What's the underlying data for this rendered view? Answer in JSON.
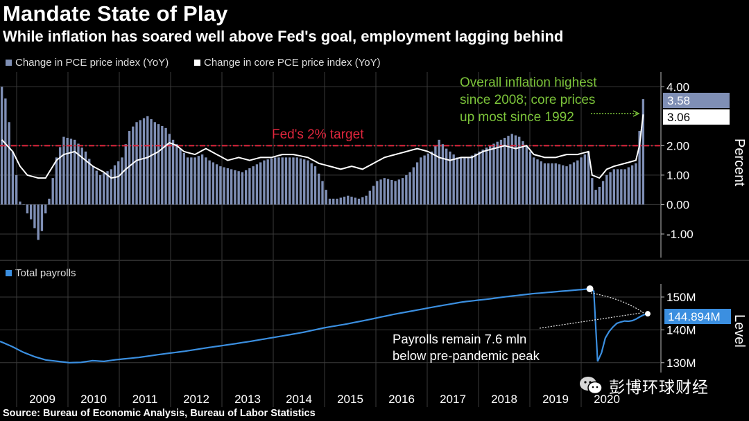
{
  "header": {
    "title": "Mandate State of Play",
    "subtitle": "While inflation has soared well above Fed's goal, employment lagging behind"
  },
  "colors": {
    "pce": "#7f8fb5",
    "core": "#ffffff",
    "target": "#e0263d",
    "annotation": "#7cc43a",
    "payrolls": "#3b8fe0",
    "grid": "#3a3a3a"
  },
  "chart_data": [
    {
      "type": "bar+line",
      "legend": {
        "pce": "Change in PCE price index (YoY)",
        "core": "Change in core PCE price index (YoY)"
      },
      "ylabel": "Percent",
      "ylim": [
        -1.8,
        4.5
      ],
      "yticks": [
        "4.00",
        "2.00",
        "1.00",
        "0.00",
        "-1.00"
      ],
      "ytick_values": [
        4,
        2,
        1,
        0,
        -1
      ],
      "target_value": 2,
      "target_label": "Fed's 2% target",
      "annotation": [
        "Overall inflation highest",
        "since 2008; core prices",
        "up most since 1992"
      ],
      "last_pce_label": "3.58",
      "last_core_label": "3.06",
      "series": [
        {
          "name": "Change in PCE price index (YoY)",
          "anchors": [
            [
              0,
              4.0
            ],
            [
              1,
              3.6
            ],
            [
              2,
              2.8
            ],
            [
              3,
              1.8
            ],
            [
              4,
              1.0
            ],
            [
              5,
              0.1
            ],
            [
              6,
              0.0
            ],
            [
              7,
              -0.3
            ],
            [
              8,
              -0.5
            ],
            [
              9,
              -0.8
            ],
            [
              10,
              -1.2
            ],
            [
              11,
              -0.9
            ],
            [
              12,
              -0.3
            ],
            [
              13,
              0.2
            ],
            [
              15,
              1.6
            ],
            [
              17,
              2.3
            ],
            [
              20,
              2.2
            ],
            [
              23,
              1.8
            ],
            [
              25,
              1.3
            ],
            [
              27,
              1.0
            ],
            [
              30,
              1.2
            ],
            [
              33,
              1.6
            ],
            [
              35,
              2.5
            ],
            [
              37,
              2.8
            ],
            [
              40,
              3.0
            ],
            [
              42,
              2.8
            ],
            [
              45,
              2.6
            ],
            [
              47,
              2.2
            ],
            [
              49,
              1.9
            ],
            [
              51,
              1.6
            ],
            [
              53,
              1.6
            ],
            [
              55,
              1.7
            ],
            [
              57,
              1.5
            ],
            [
              60,
              1.3
            ],
            [
              63,
              1.2
            ],
            [
              66,
              1.1
            ],
            [
              69,
              1.3
            ],
            [
              72,
              1.5
            ],
            [
              75,
              1.6
            ],
            [
              78,
              1.6
            ],
            [
              81,
              1.6
            ],
            [
              84,
              1.5
            ],
            [
              86,
              1.3
            ],
            [
              88,
              0.8
            ],
            [
              90,
              0.2
            ],
            [
              92,
              0.2
            ],
            [
              95,
              0.3
            ],
            [
              98,
              0.2
            ],
            [
              100,
              0.3
            ],
            [
              103,
              0.8
            ],
            [
              105,
              0.9
            ],
            [
              108,
              0.8
            ],
            [
              110,
              0.9
            ],
            [
              112,
              1.1
            ],
            [
              115,
              1.6
            ],
            [
              118,
              1.8
            ],
            [
              120,
              2.2
            ],
            [
              122,
              1.9
            ],
            [
              125,
              1.6
            ],
            [
              128,
              1.6
            ],
            [
              131,
              1.8
            ],
            [
              134,
              2.0
            ],
            [
              137,
              2.2
            ],
            [
              140,
              2.4
            ],
            [
              142,
              2.3
            ],
            [
              144,
              2.0
            ],
            [
              146,
              1.6
            ],
            [
              149,
              1.4
            ],
            [
              152,
              1.4
            ],
            [
              155,
              1.3
            ],
            [
              158,
              1.5
            ],
            [
              160,
              1.7
            ],
            [
              161,
              1.8
            ],
            [
              162,
              0.9
            ],
            [
              163,
              0.5
            ],
            [
              164,
              0.6
            ],
            [
              166,
              1.0
            ],
            [
              168,
              1.2
            ],
            [
              171,
              1.2
            ],
            [
              174,
              1.4
            ],
            [
              175,
              2.5
            ],
            [
              176,
              3.58
            ]
          ],
          "n": 177
        },
        {
          "name": "Change in core PCE price index (YoY)",
          "anchors": [
            [
              0,
              2.2
            ],
            [
              3,
              1.8
            ],
            [
              5,
              1.3
            ],
            [
              7,
              1.0
            ],
            [
              10,
              0.9
            ],
            [
              12,
              0.9
            ],
            [
              15,
              1.5
            ],
            [
              17,
              1.7
            ],
            [
              20,
              1.8
            ],
            [
              22,
              1.6
            ],
            [
              25,
              1.3
            ],
            [
              28,
              1.1
            ],
            [
              30,
              0.9
            ],
            [
              32,
              0.95
            ],
            [
              34,
              1.2
            ],
            [
              37,
              1.5
            ],
            [
              40,
              1.6
            ],
            [
              43,
              1.8
            ],
            [
              46,
              2.1
            ],
            [
              48,
              2.0
            ],
            [
              50,
              1.8
            ],
            [
              53,
              1.7
            ],
            [
              56,
              1.9
            ],
            [
              59,
              1.7
            ],
            [
              62,
              1.5
            ],
            [
              65,
              1.6
            ],
            [
              68,
              1.5
            ],
            [
              71,
              1.6
            ],
            [
              74,
              1.6
            ],
            [
              77,
              1.7
            ],
            [
              80,
              1.7
            ],
            [
              84,
              1.6
            ],
            [
              87,
              1.4
            ],
            [
              90,
              1.3
            ],
            [
              93,
              1.2
            ],
            [
              96,
              1.3
            ],
            [
              99,
              1.2
            ],
            [
              102,
              1.4
            ],
            [
              105,
              1.6
            ],
            [
              108,
              1.7
            ],
            [
              111,
              1.8
            ],
            [
              114,
              1.9
            ],
            [
              117,
              1.8
            ],
            [
              120,
              1.6
            ],
            [
              123,
              1.5
            ],
            [
              126,
              1.6
            ],
            [
              129,
              1.6
            ],
            [
              132,
              1.8
            ],
            [
              135,
              1.9
            ],
            [
              138,
              2.0
            ],
            [
              141,
              1.9
            ],
            [
              144,
              2.0
            ],
            [
              146,
              1.7
            ],
            [
              149,
              1.6
            ],
            [
              152,
              1.6
            ],
            [
              155,
              1.7
            ],
            [
              158,
              1.7
            ],
            [
              161,
              1.8
            ],
            [
              162,
              1.0
            ],
            [
              164,
              0.9
            ],
            [
              166,
              1.2
            ],
            [
              168,
              1.3
            ],
            [
              171,
              1.4
            ],
            [
              174,
              1.5
            ],
            [
              175,
              2.0
            ],
            [
              176,
              3.06
            ]
          ],
          "n": 177
        }
      ]
    },
    {
      "type": "line",
      "legend": "Total payrolls",
      "ylabel": "Level",
      "ylim": [
        127,
        154
      ],
      "yticks": [
        "150M",
        "140M",
        "130M"
      ],
      "ytick_values": [
        150,
        140,
        130
      ],
      "annotation": [
        "Payrolls remain 7.6 mln",
        "below pre-pandemic peak"
      ],
      "last_label": "144.894M",
      "peak_value": 152.5,
      "last_value": 144.894,
      "series": [
        {
          "name": "Total payrolls",
          "anchors": [
            [
              0,
              136.5
            ],
            [
              3,
              135.0
            ],
            [
              6,
              133.2
            ],
            [
              9,
              131.8
            ],
            [
              12,
              130.8
            ],
            [
              15,
              130.4
            ],
            [
              18,
              130.0
            ],
            [
              21,
              130.1
            ],
            [
              24,
              130.6
            ],
            [
              27,
              130.4
            ],
            [
              30,
              130.9
            ],
            [
              36,
              131.6
            ],
            [
              42,
              132.6
            ],
            [
              48,
              133.5
            ],
            [
              54,
              134.6
            ],
            [
              60,
              135.6
            ],
            [
              66,
              136.7
            ],
            [
              72,
              137.9
            ],
            [
              78,
              139.1
            ],
            [
              84,
              140.6
            ],
            [
              90,
              141.8
            ],
            [
              96,
              143.2
            ],
            [
              102,
              144.7
            ],
            [
              108,
              146.0
            ],
            [
              114,
              147.3
            ],
            [
              120,
              148.5
            ],
            [
              126,
              149.3
            ],
            [
              132,
              150.2
            ],
            [
              138,
              151.0
            ],
            [
              144,
              151.6
            ],
            [
              150,
              152.2
            ],
            [
              153,
              152.5
            ],
            [
              154,
              151.8
            ],
            [
              155,
              130.4
            ],
            [
              156,
              133.0
            ],
            [
              157,
              137.5
            ],
            [
              158,
              139.5
            ],
            [
              159,
              140.9
            ],
            [
              160,
              142.0
            ],
            [
              161,
              142.4
            ],
            [
              162,
              142.7
            ],
            [
              163,
              142.6
            ],
            [
              164,
              142.8
            ],
            [
              165,
              143.3
            ],
            [
              166,
              144.0
            ],
            [
              167,
              144.6
            ],
            [
              168,
              144.894
            ]
          ],
          "n": 169
        }
      ]
    }
  ],
  "xaxis": {
    "labels": [
      "2009",
      "2010",
      "2011",
      "2012",
      "2013",
      "2014",
      "2015",
      "2016",
      "2017",
      "2018",
      "2019",
      "2020"
    ]
  },
  "source": "Source: Bureau of Economic Analysis, Bureau of Labor Statistics",
  "watermark": {
    "text": "彭博环球财经",
    "icon": "wechat-icon"
  }
}
